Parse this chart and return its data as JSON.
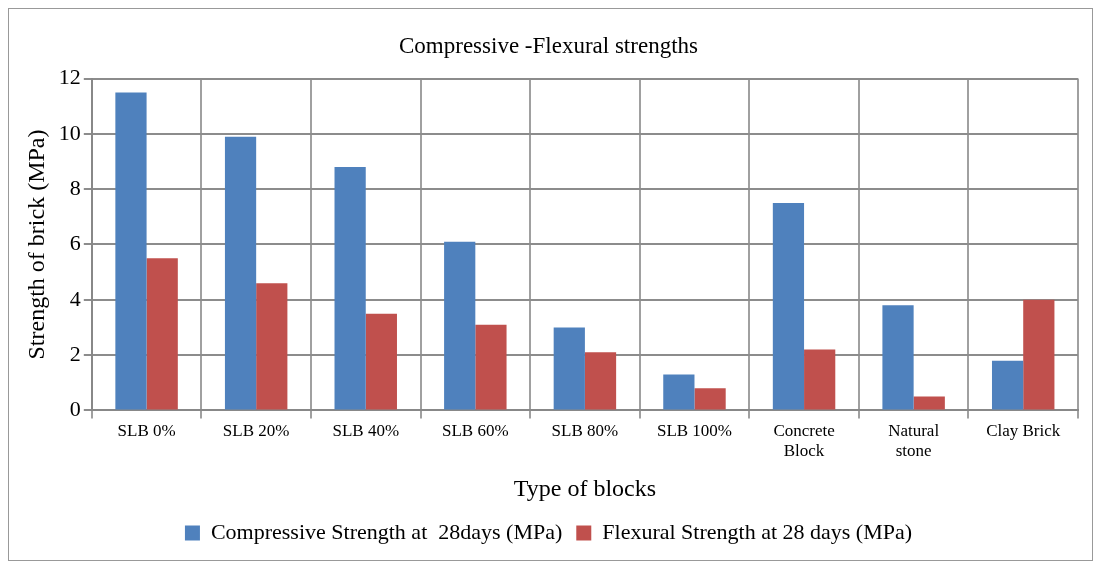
{
  "chart_data": {
    "type": "bar",
    "title": "Compressive -Flexural strengths",
    "xlabel": "Type of blocks",
    "ylabel": "Strength of brick (MPa)",
    "categories": [
      "SLB 0%",
      "SLB 20%",
      "SLB 40%",
      "SLB 60%",
      "SLB 80%",
      "SLB 100%",
      "Concrete Block",
      "Natural stone",
      "Clay Brick"
    ],
    "series": [
      {
        "name": "Compressive Strength at  28days (MPa)",
        "color": "#4f81bd",
        "values": [
          11.5,
          9.9,
          8.8,
          6.1,
          3.0,
          1.3,
          7.5,
          3.8,
          1.8
        ]
      },
      {
        "name": "Flexural Strength at 28 days (MPa)",
        "color": "#c0504d",
        "values": [
          5.5,
          4.6,
          3.5,
          3.1,
          2.1,
          0.8,
          2.2,
          0.5,
          4.0
        ]
      }
    ],
    "ylim": [
      0,
      12
    ],
    "yticks": [
      0,
      2,
      4,
      6,
      8,
      10,
      12
    ],
    "grid": true,
    "legend": "bottom"
  }
}
